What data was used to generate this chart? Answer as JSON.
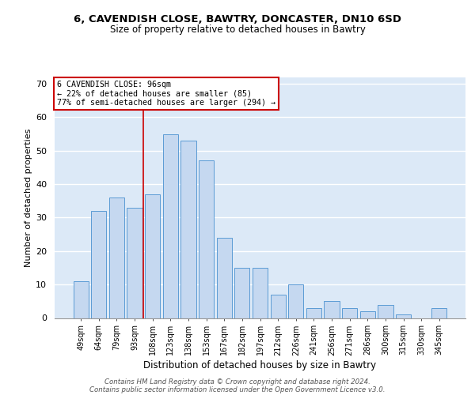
{
  "title1": "6, CAVENDISH CLOSE, BAWTRY, DONCASTER, DN10 6SD",
  "title2": "Size of property relative to detached houses in Bawtry",
  "xlabel": "Distribution of detached houses by size in Bawtry",
  "ylabel": "Number of detached properties",
  "categories": [
    "49sqm",
    "64sqm",
    "79sqm",
    "93sqm",
    "108sqm",
    "123sqm",
    "138sqm",
    "153sqm",
    "167sqm",
    "182sqm",
    "197sqm",
    "212sqm",
    "226sqm",
    "241sqm",
    "256sqm",
    "271sqm",
    "286sqm",
    "300sqm",
    "315sqm",
    "330sqm",
    "345sqm"
  ],
  "values": [
    11,
    32,
    36,
    33,
    37,
    55,
    53,
    47,
    24,
    15,
    15,
    7,
    10,
    3,
    5,
    3,
    2,
    4,
    1,
    0,
    3
  ],
  "bar_color": "#c5d8f0",
  "bar_edge_color": "#5b9bd5",
  "bg_color": "#dce9f7",
  "grid_color": "#ffffff",
  "annotation_line_label": "6 CAVENDISH CLOSE: 96sqm",
  "annotation_line1": "← 22% of detached houses are smaller (85)",
  "annotation_line2": "77% of semi-detached houses are larger (294) →",
  "annotation_box_color": "#ffffff",
  "annotation_box_edge_color": "#cc0000",
  "vline_color": "#cc0000",
  "vline_x": 3.5,
  "ylim": [
    0,
    72
  ],
  "yticks": [
    0,
    10,
    20,
    30,
    40,
    50,
    60,
    70
  ],
  "footer1": "Contains HM Land Registry data © Crown copyright and database right 2024.",
  "footer2": "Contains public sector information licensed under the Open Government Licence v3.0."
}
